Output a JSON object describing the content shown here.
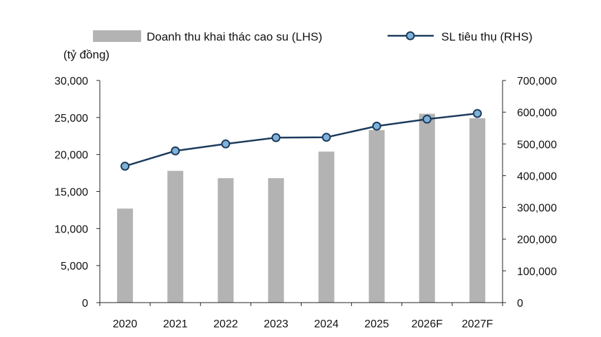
{
  "chart_data": {
    "type": "bar+line",
    "categories": [
      "2020",
      "2021",
      "2022",
      "2023",
      "2024",
      "2025",
      "2026F",
      "2027F"
    ],
    "unit_label": "(tỷ đồng)",
    "series": [
      {
        "name": "Doanh thu khai thác cao su (LHS)",
        "type": "bar",
        "axis": "left",
        "color": "#b3b3b3",
        "values": [
          12700,
          17800,
          16800,
          16800,
          20400,
          23300,
          25500,
          24900
        ]
      },
      {
        "name": "SL tiêu thụ (RHS)",
        "type": "line",
        "axis": "right",
        "color": "#1b3a5c",
        "marker_color": "#7fb2d9",
        "values": [
          430000,
          478000,
          500000,
          520000,
          521000,
          556000,
          578000,
          596000
        ]
      }
    ],
    "left_axis": {
      "ylim": [
        0,
        30000
      ],
      "ticks": [
        0,
        5000,
        10000,
        15000,
        20000,
        25000,
        30000
      ],
      "tick_labels": [
        "0",
        "5,000",
        "10,000",
        "15,000",
        "20,000",
        "25,000",
        "30,000"
      ]
    },
    "right_axis": {
      "ylim": [
        0,
        700000
      ],
      "ticks": [
        0,
        100000,
        200000,
        300000,
        400000,
        500000,
        600000,
        700000
      ],
      "tick_labels": [
        "0",
        "100,000",
        "200,000",
        "300,000",
        "400,000",
        "500,000",
        "600,000",
        "700,000"
      ]
    },
    "grid": false,
    "legend_position": "top"
  }
}
